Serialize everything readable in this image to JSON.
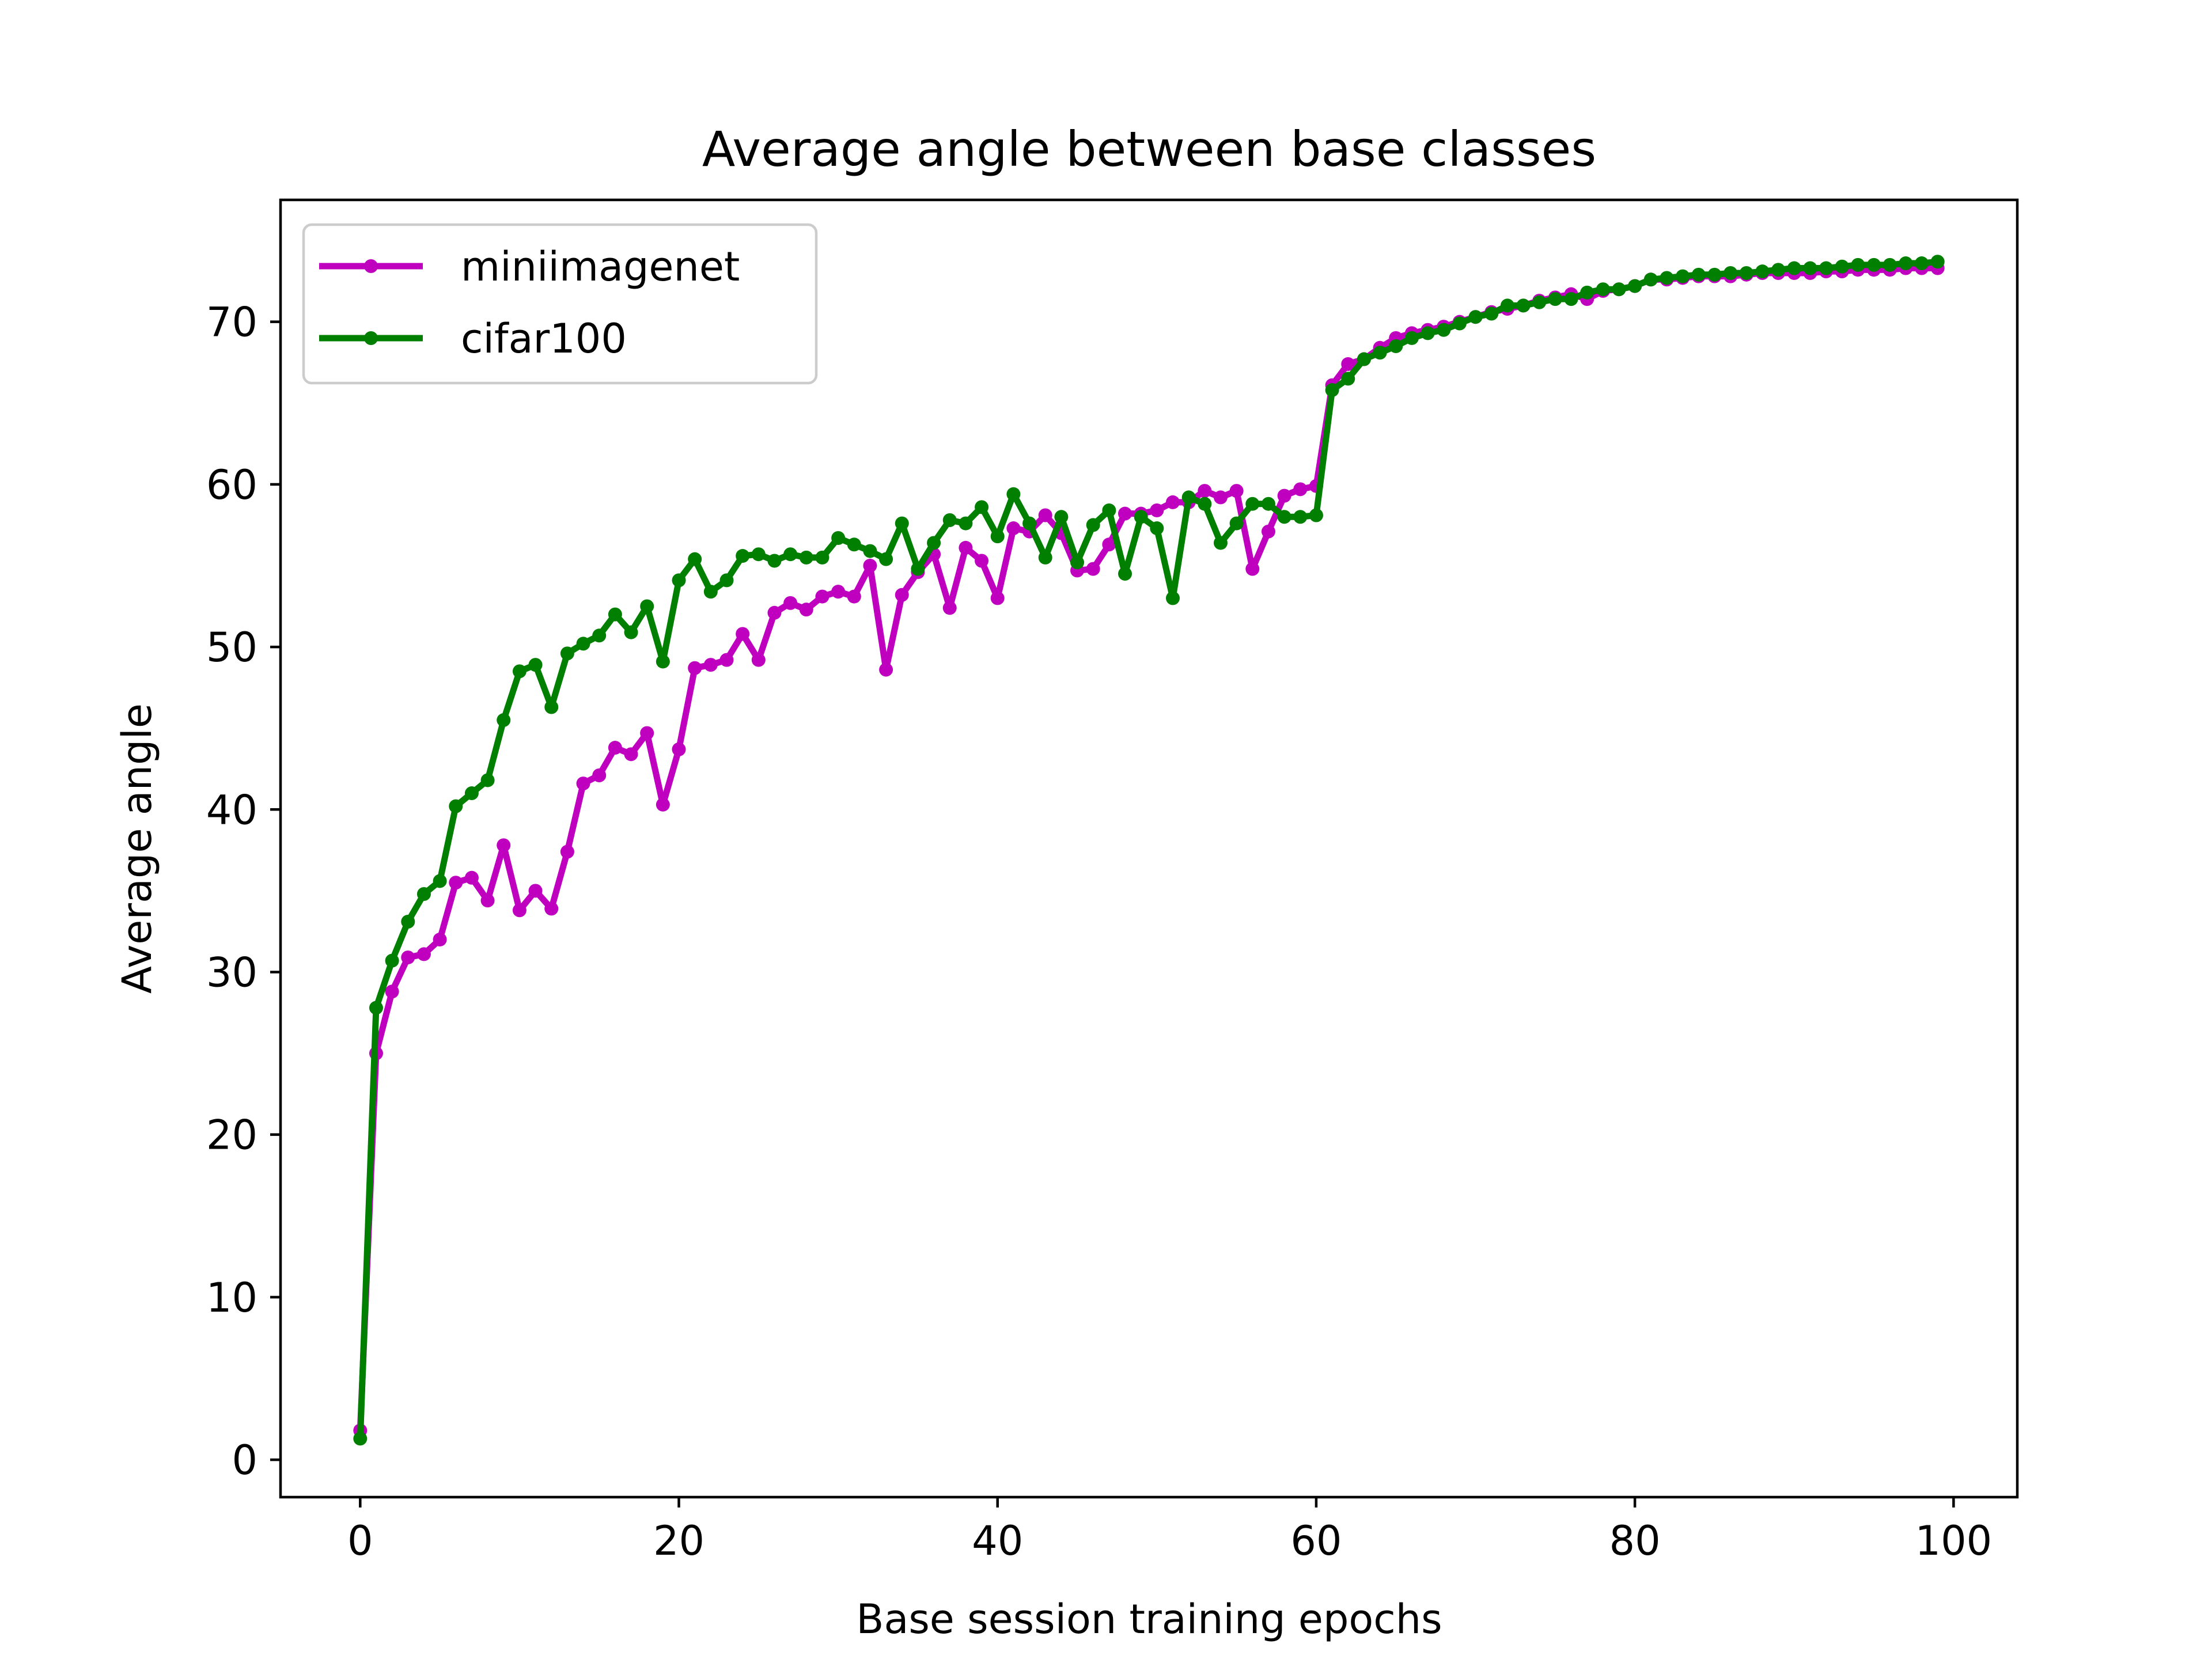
{
  "chart_data": {
    "type": "line",
    "title": "Average angle between base classes",
    "xlabel": "Base session training epochs",
    "ylabel": "Average angle",
    "xlim": [
      -5,
      104
    ],
    "ylim": [
      -2.3,
      77.5
    ],
    "xticks": [
      0,
      20,
      40,
      60,
      80,
      100
    ],
    "yticks": [
      0,
      10,
      20,
      30,
      40,
      50,
      60,
      70
    ],
    "grid": false,
    "legend_position": "top-left",
    "x": [
      0,
      1,
      2,
      3,
      4,
      5,
      6,
      7,
      8,
      9,
      10,
      11,
      12,
      13,
      14,
      15,
      16,
      17,
      18,
      19,
      20,
      21,
      22,
      23,
      24,
      25,
      26,
      27,
      28,
      29,
      30,
      31,
      32,
      33,
      34,
      35,
      36,
      37,
      38,
      39,
      40,
      41,
      42,
      43,
      44,
      45,
      46,
      47,
      48,
      49,
      50,
      51,
      52,
      53,
      54,
      55,
      56,
      57,
      58,
      59,
      60,
      61,
      62,
      63,
      64,
      65,
      66,
      67,
      68,
      69,
      70,
      71,
      72,
      73,
      74,
      75,
      76,
      77,
      78,
      79,
      80,
      81,
      82,
      83,
      84,
      85,
      86,
      87,
      88,
      89,
      90,
      91,
      92,
      93,
      94,
      95,
      96,
      97,
      98,
      99
    ],
    "series": [
      {
        "name": "miniimagenet",
        "color": "#bf00bf",
        "values": [
          1.8,
          25.0,
          28.8,
          30.9,
          31.1,
          32.0,
          35.5,
          35.8,
          34.4,
          37.8,
          33.8,
          35.0,
          33.9,
          37.4,
          41.6,
          42.1,
          43.8,
          43.4,
          44.7,
          40.3,
          43.7,
          48.7,
          48.9,
          49.2,
          50.8,
          49.2,
          52.1,
          52.7,
          52.3,
          53.1,
          53.4,
          53.1,
          55.0,
          48.6,
          53.2,
          54.6,
          55.7,
          52.4,
          56.1,
          55.3,
          53.0,
          57.3,
          57.1,
          58.1,
          57.0,
          54.7,
          54.8,
          56.3,
          58.2,
          58.2,
          58.4,
          58.9,
          58.9,
          59.6,
          59.2,
          59.6,
          54.8,
          57.1,
          59.3,
          59.7,
          59.9,
          66.1,
          67.4,
          67.7,
          68.4,
          69.0,
          69.3,
          69.5,
          69.7,
          70.0,
          70.3,
          70.6,
          70.8,
          71.0,
          71.3,
          71.5,
          71.7,
          71.4,
          71.9,
          72.0,
          72.2,
          72.6,
          72.6,
          72.7,
          72.8,
          72.8,
          72.8,
          72.9,
          73.0,
          73.0,
          73.0,
          73.0,
          73.1,
          73.1,
          73.2,
          73.2,
          73.2,
          73.3,
          73.3,
          73.3
        ]
      },
      {
        "name": "cifar100",
        "color": "#007f00",
        "values": [
          1.3,
          27.8,
          30.7,
          33.1,
          34.8,
          35.6,
          40.2,
          41.0,
          41.8,
          45.5,
          48.5,
          48.9,
          46.3,
          49.6,
          50.2,
          50.7,
          52.0,
          50.9,
          52.5,
          49.1,
          54.1,
          55.4,
          53.4,
          54.1,
          55.6,
          55.7,
          55.3,
          55.7,
          55.5,
          55.5,
          56.7,
          56.3,
          55.9,
          55.4,
          57.6,
          54.8,
          56.4,
          57.8,
          57.6,
          58.6,
          56.8,
          59.4,
          57.6,
          55.5,
          58.0,
          55.2,
          57.5,
          58.4,
          54.5,
          58.0,
          57.3,
          53.0,
          59.2,
          58.8,
          56.4,
          57.6,
          58.8,
          58.8,
          58.0,
          58.0,
          58.1,
          65.8,
          66.5,
          67.7,
          68.1,
          68.5,
          69.0,
          69.3,
          69.5,
          69.9,
          70.3,
          70.5,
          71.0,
          71.0,
          71.2,
          71.4,
          71.4,
          71.8,
          72.0,
          72.0,
          72.2,
          72.6,
          72.7,
          72.8,
          72.9,
          72.9,
          73.0,
          73.0,
          73.1,
          73.2,
          73.3,
          73.3,
          73.3,
          73.4,
          73.5,
          73.5,
          73.5,
          73.6,
          73.6,
          73.7
        ]
      }
    ]
  }
}
